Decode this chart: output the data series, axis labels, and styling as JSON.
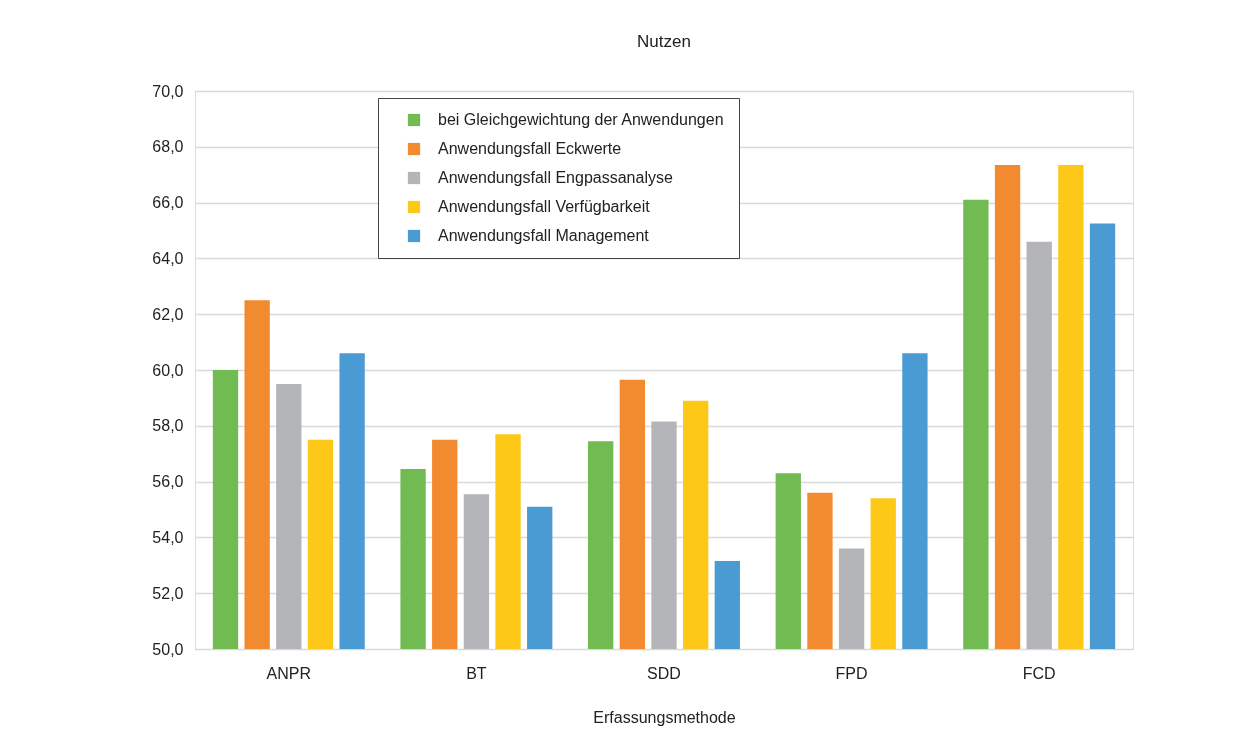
{
  "chart_data": {
    "type": "bar",
    "title": "Nutzen",
    "xlabel": "Erfassungsmethode",
    "categories": [
      "ANPR",
      "BT",
      "SDD",
      "FPD",
      "FCD"
    ],
    "series": [
      {
        "name": "bei Gleichgewichtung der Anwendungen",
        "color": "#72bb53",
        "values": [
          60.0,
          56.45,
          57.45,
          56.3,
          66.1
        ]
      },
      {
        "name": "Anwendungsfall Eckwerte",
        "color": "#f28a30",
        "values": [
          62.5,
          57.5,
          59.65,
          55.6,
          67.35
        ]
      },
      {
        "name": "Anwendungsfall Engpassanalyse",
        "color": "#b4b5b8",
        "values": [
          59.5,
          55.55,
          58.15,
          53.6,
          64.6
        ]
      },
      {
        "name": "Anwendungsfall Verfügbarkeit",
        "color": "#fec818",
        "values": [
          57.5,
          57.7,
          58.9,
          55.4,
          67.35
        ]
      },
      {
        "name": "Anwendungsfall Management",
        "color": "#4a9bd4",
        "values": [
          60.6,
          55.1,
          53.15,
          60.6,
          65.25
        ]
      }
    ],
    "ylim": [
      50,
      70
    ],
    "yticks": [
      {
        "value": 50,
        "label": "50,0"
      },
      {
        "value": 52,
        "label": "52,0"
      },
      {
        "value": 54,
        "label": "54,0"
      },
      {
        "value": 56,
        "label": "56,0"
      },
      {
        "value": 58,
        "label": "58,0"
      },
      {
        "value": 60,
        "label": "60,0"
      },
      {
        "value": 62,
        "label": "62,0"
      },
      {
        "value": 64,
        "label": "64,0"
      },
      {
        "value": 66,
        "label": "66,0"
      },
      {
        "value": 68,
        "label": "68,0"
      },
      {
        "value": 70,
        "label": "70,0"
      }
    ],
    "grid": "y",
    "legend": "top"
  }
}
